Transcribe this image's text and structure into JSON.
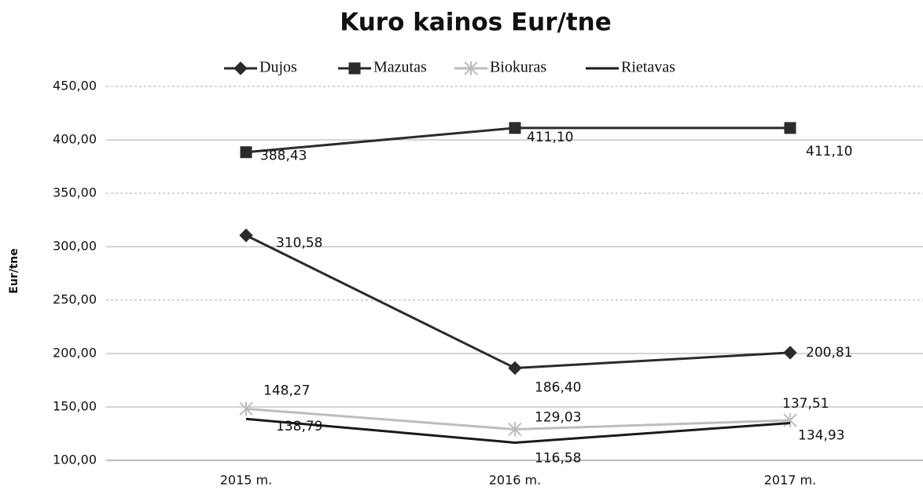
{
  "chart_data": {
    "type": "line",
    "title": "Kuro kainos Eur/tne",
    "y_label": "Eur/tne",
    "categories": [
      "2015 m.",
      "2016 m.",
      "2017 m."
    ],
    "series": [
      {
        "name": "Dujos",
        "color": "#2b2b2b",
        "marker": "diamond",
        "values": [
          310.58,
          186.4,
          200.81
        ],
        "value_labels": [
          "310,58",
          "186,40",
          "200,81"
        ]
      },
      {
        "name": "Mazutas",
        "color": "#2b2b2b",
        "marker": "square",
        "values": [
          388.43,
          411.1,
          411.1
        ],
        "value_labels": [
          "388,43",
          "411,10",
          "411,10"
        ]
      },
      {
        "name": "Biokuras",
        "color": "#bdbdbd",
        "marker": "star",
        "values": [
          148.27,
          129.03,
          137.51
        ],
        "value_labels": [
          "148,27",
          "129,03",
          "137,51"
        ]
      },
      {
        "name": "Rietavas",
        "color": "#1a1a1a",
        "marker": "none",
        "values": [
          138.79,
          116.58,
          134.93
        ],
        "value_labels": [
          "138,79",
          "116,58",
          "134,93"
        ]
      }
    ],
    "ylim": [
      100,
      450
    ],
    "yticks": [
      {
        "value": 100,
        "label": "100,00"
      },
      {
        "value": 150,
        "label": "150,00"
      },
      {
        "value": 200,
        "label": "200,00"
      },
      {
        "value": 250,
        "label": "250,00"
      },
      {
        "value": 300,
        "label": "300,00"
      },
      {
        "value": 350,
        "label": "350,00"
      },
      {
        "value": 400,
        "label": "400,00"
      },
      {
        "value": 450,
        "label": "450,00"
      }
    ],
    "grid": true,
    "legend": "top"
  }
}
